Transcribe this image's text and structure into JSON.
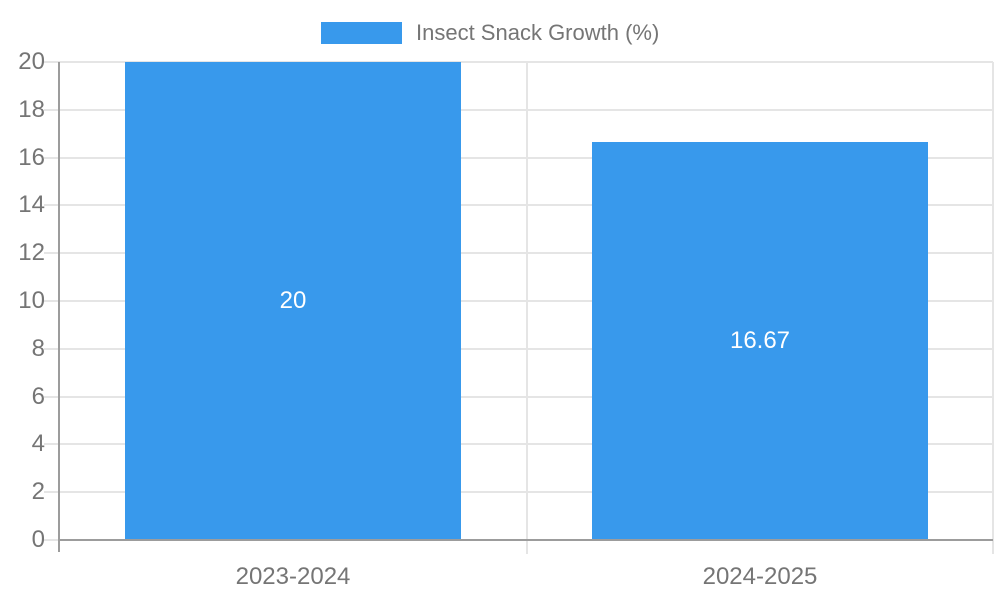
{
  "chart_data": {
    "type": "bar",
    "title": "",
    "legend": {
      "label": "Insect Snack Growth (%)",
      "position": "top"
    },
    "categories": [
      "2023-2024",
      "2024-2025"
    ],
    "series": [
      {
        "name": "Insect Snack Growth (%)",
        "values": [
          20,
          16.67
        ],
        "data_labels": [
          "20",
          "16.67"
        ]
      }
    ],
    "xlabel": "",
    "ylabel": "",
    "ylim": [
      0,
      20
    ],
    "ytick_step": 2,
    "ytick_labels": [
      "0",
      "2",
      "4",
      "6",
      "8",
      "10",
      "12",
      "14",
      "16",
      "18",
      "20"
    ],
    "grid": true,
    "legend_position": "top",
    "colors": {
      "bar": "#3899ec",
      "axis_text": "#757575",
      "bar_label_text": "#ffffff",
      "gridline": "#e5e5e5",
      "axis_line": "#9c9c9c",
      "background": "#ffffff"
    }
  }
}
